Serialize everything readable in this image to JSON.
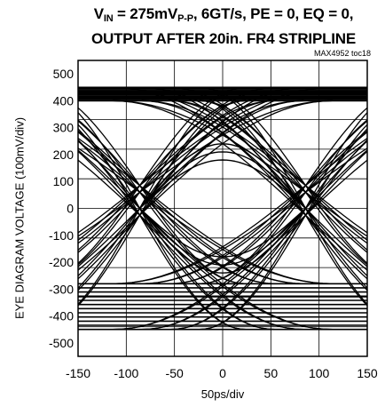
{
  "title": {
    "line1_prefix": "V",
    "line1_sub1": "IN",
    "line1_mid": " = 275mV",
    "line1_sub2": "P-P",
    "line1_rest": ", 6GT/s, PE = 0, EQ = 0,",
    "line2": "OUTPUT AFTER 20in. FR4 STRIPLINE"
  },
  "figure_code": "MAX4952 toc18",
  "chart_data": {
    "type": "line",
    "title": "VIN = 275mVP-P, 6GT/s, PE = 0, EQ = 0, OUTPUT AFTER 20in. FR4 STRIPLINE",
    "xlabel": "50ps/div",
    "ylabel": "EYE DIAGRAM VOLTAGE (100mV/div)",
    "xlim": [
      -150,
      150
    ],
    "ylim": [
      -550,
      550
    ],
    "x_ticks": [
      "-150",
      "-100",
      "-50",
      "0",
      "50",
      "100",
      "150"
    ],
    "y_ticks": [
      "500",
      "400",
      "300",
      "200",
      "100",
      "0",
      "-100",
      "-200",
      "-300",
      "-400",
      "-500"
    ],
    "grid": true,
    "eye_diagram": {
      "high_rail_min": 400,
      "high_rail_max": 450,
      "low_rail_min": -450,
      "low_rail_max": -280,
      "crossing_points_x": [
        -86,
        86
      ],
      "crossing_level": 0,
      "eye_center_x": 0,
      "eye_inner_open_top": 180,
      "eye_inner_open_bottom": -180
    }
  }
}
